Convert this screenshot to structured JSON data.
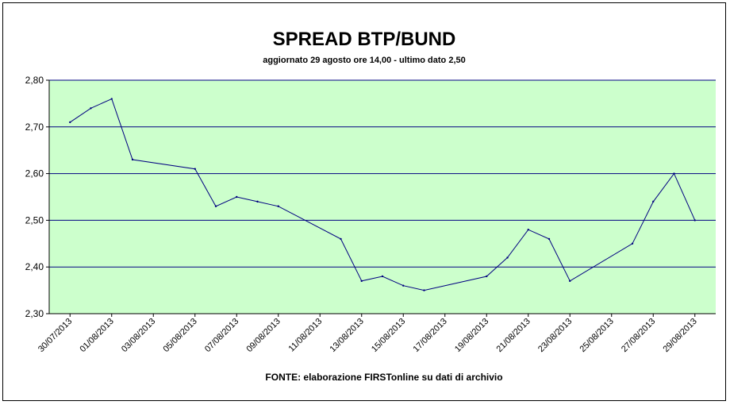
{
  "chart_data": {
    "type": "line",
    "title": "SPREAD BTP/BUND",
    "subtitle": "aggiornato 29 agosto ore 14,00 - ultimo dato 2,50",
    "source": "FONTE: elaborazione FIRSTonline su dati di archivio",
    "ylim": [
      2.3,
      2.8
    ],
    "yticks": [
      "2,30",
      "2,40",
      "2,50",
      "2,60",
      "2,70",
      "2,80"
    ],
    "ytick_values": [
      2.3,
      2.4,
      2.5,
      2.6,
      2.7,
      2.8
    ],
    "xticks": [
      "30/07/2013",
      "01/08/2013",
      "03/08/2013",
      "05/08/2013",
      "07/08/2013",
      "09/08/2013",
      "11/08/2013",
      "13/08/2013",
      "15/08/2013",
      "17/08/2013",
      "19/08/2013",
      "21/08/2013",
      "23/08/2013",
      "25/08/2013",
      "27/08/2013",
      "29/08/2013"
    ],
    "xrange": [
      "2013-07-29",
      "2013-08-30"
    ],
    "grid": true,
    "legend": "none",
    "series": [
      {
        "x": [
          "2013-07-30",
          "2013-07-31",
          "2013-08-01",
          "2013-08-02",
          "2013-08-05",
          "2013-08-06",
          "2013-08-07",
          "2013-08-08",
          "2013-08-09",
          "2013-08-12",
          "2013-08-13",
          "2013-08-14",
          "2013-08-15",
          "2013-08-16",
          "2013-08-19",
          "2013-08-20",
          "2013-08-21",
          "2013-08-22",
          "2013-08-23",
          "2013-08-26",
          "2013-08-27",
          "2013-08-28",
          "2013-08-29"
        ],
        "values": [
          2.71,
          2.74,
          2.76,
          2.63,
          2.61,
          2.53,
          2.55,
          2.54,
          2.53,
          2.46,
          2.37,
          2.38,
          2.36,
          2.35,
          2.38,
          2.42,
          2.48,
          2.46,
          2.37,
          2.45,
          2.54,
          2.6,
          2.5
        ]
      }
    ],
    "colors": {
      "plot_background": "#ccffcc",
      "line": "#000080",
      "grid": "#000080"
    }
  }
}
